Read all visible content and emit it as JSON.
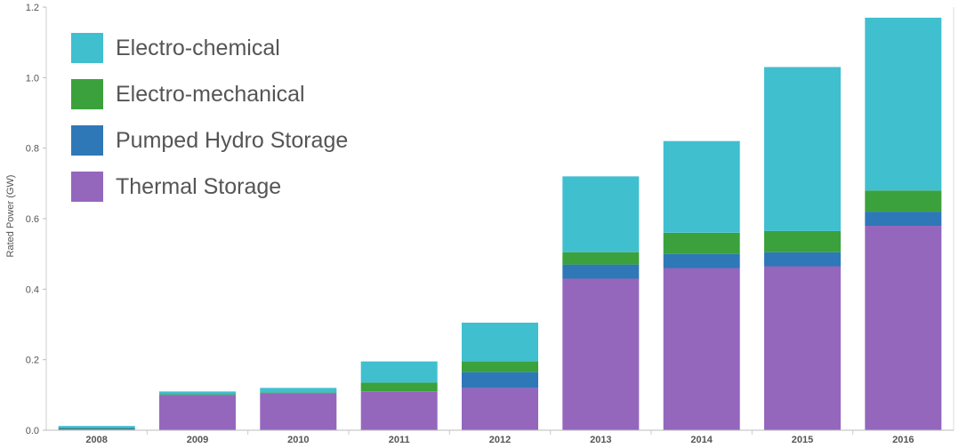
{
  "chart_data": {
    "type": "bar",
    "stacked": true,
    "ylabel": "Rated Power (GW)",
    "xlabel": "",
    "ylim": [
      0,
      1.2
    ],
    "yticks": [
      "0.0",
      "0.2",
      "0.4",
      "0.6",
      "0.8",
      "1.0",
      "1.2"
    ],
    "grid": false,
    "legend_position": "top-left",
    "categories": [
      "2008",
      "2009",
      "2010",
      "2011",
      "2012",
      "2013",
      "2014",
      "2015",
      "2016"
    ],
    "series": [
      {
        "name": "Thermal Storage",
        "color": "#9467bd",
        "values": [
          0.002,
          0.1,
          0.105,
          0.11,
          0.12,
          0.43,
          0.46,
          0.465,
          0.58
        ]
      },
      {
        "name": "Pumped Hydro Storage",
        "color": "#2e78b7",
        "values": [
          0.003,
          0.0,
          0.0,
          0.0,
          0.045,
          0.04,
          0.04,
          0.04,
          0.04
        ]
      },
      {
        "name": "Electro-mechanical",
        "color": "#3ba13c",
        "values": [
          0.002,
          0.002,
          0.002,
          0.025,
          0.03,
          0.035,
          0.06,
          0.06,
          0.06
        ]
      },
      {
        "name": "Electro-chemical",
        "color": "#40bfcf",
        "values": [
          0.005,
          0.008,
          0.013,
          0.06,
          0.11,
          0.215,
          0.26,
          0.465,
          0.49
        ]
      }
    ],
    "legend_order": [
      "Electro-chemical",
      "Electro-mechanical",
      "Pumped Hydro Storage",
      "Thermal Storage"
    ]
  }
}
